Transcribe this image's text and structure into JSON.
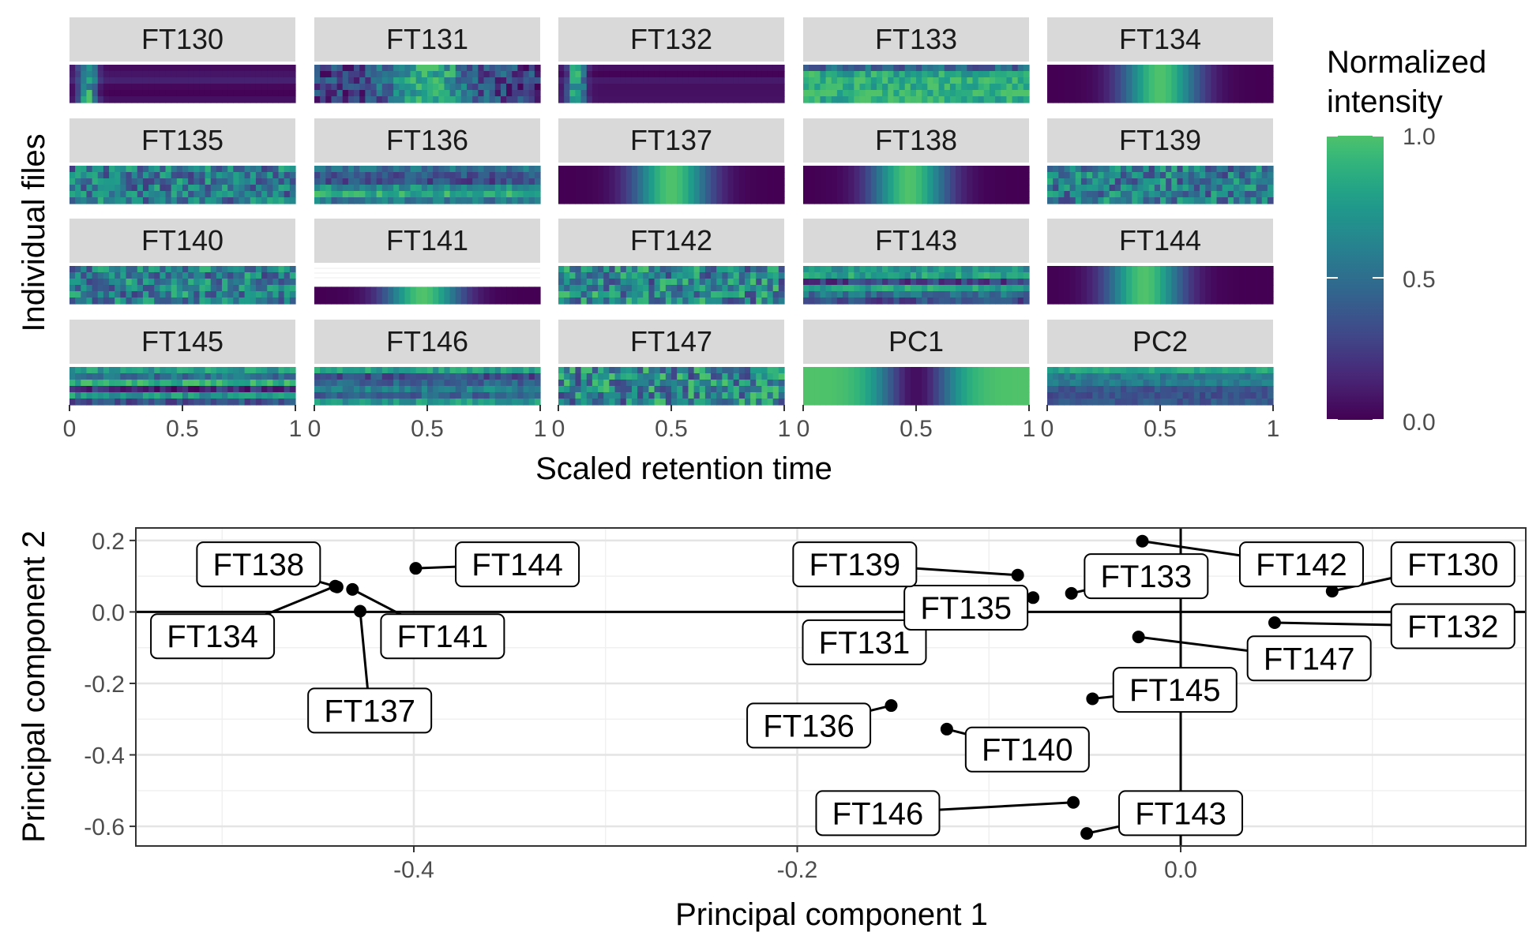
{
  "chart_data": [
    {
      "type": "heatmap",
      "ylabel": "Individual files",
      "xlabel": "Scaled retention time",
      "x_ticks": [
        "0",
        "0.5",
        "1"
      ],
      "xlim": [
        0,
        1
      ],
      "panels": [
        {
          "label": "FT130",
          "peak": 0.08,
          "pattern": "early",
          "noise": 0.2
        },
        {
          "label": "FT131",
          "peak": 0.5,
          "pattern": "noisy-peak",
          "noise": 0.55
        },
        {
          "label": "FT132",
          "peak": 0.08,
          "pattern": "early",
          "noise": 0.25
        },
        {
          "label": "FT133",
          "peak": 0.5,
          "pattern": "streaky",
          "noise": 0.7
        },
        {
          "label": "FT134",
          "peak": 0.5,
          "pattern": "smooth",
          "noise": 0.05
        },
        {
          "label": "FT135",
          "peak": 0.5,
          "pattern": "flat",
          "noise": 0.65
        },
        {
          "label": "FT136",
          "peak": 0.5,
          "pattern": "streaky",
          "noise": 0.6
        },
        {
          "label": "FT137",
          "peak": 0.5,
          "pattern": "smooth",
          "noise": 0.08
        },
        {
          "label": "FT138",
          "peak": 0.47,
          "pattern": "smooth",
          "noise": 0.05
        },
        {
          "label": "FT139",
          "peak": 0.5,
          "pattern": "flat",
          "noise": 0.65
        },
        {
          "label": "FT140",
          "peak": 0.5,
          "pattern": "flat",
          "noise": 0.7
        },
        {
          "label": "FT141",
          "peak": 0.48,
          "pattern": "single-row",
          "noise": 0.03
        },
        {
          "label": "FT142",
          "peak": 0.5,
          "pattern": "flat",
          "noise": 0.75
        },
        {
          "label": "FT143",
          "peak": 0.5,
          "pattern": "streaky",
          "noise": 0.6
        },
        {
          "label": "FT144",
          "peak": 0.43,
          "pattern": "smooth",
          "noise": 0.05
        },
        {
          "label": "FT145",
          "peak": 0.5,
          "pattern": "streaky",
          "noise": 0.6
        },
        {
          "label": "FT146",
          "peak": 0.5,
          "pattern": "streaky",
          "noise": 0.55
        },
        {
          "label": "FT147",
          "peak": 0.5,
          "pattern": "flat",
          "noise": 0.8
        },
        {
          "label": "PC1",
          "peak": 0.5,
          "pattern": "inverted",
          "noise": 0.05
        },
        {
          "label": "PC2",
          "peak": 0.5,
          "pattern": "streaky",
          "noise": 0.35
        }
      ],
      "legend": {
        "title_line1": "Normalized",
        "title_line2": "intensity",
        "ticks": [
          "1.0",
          "0.5",
          "0.0"
        ],
        "range": [
          0,
          1
        ],
        "colormap": "viridis",
        "position": "right"
      }
    },
    {
      "type": "scatter",
      "xlabel": "Principal component 1",
      "ylabel": "Principal component 2",
      "xlim": [
        -0.545,
        0.18
      ],
      "ylim": [
        -0.655,
        0.235
      ],
      "x_ticks": [
        -0.4,
        -0.2,
        0.0
      ],
      "y_ticks": [
        0.2,
        0.0,
        -0.2,
        -0.4,
        -0.6
      ],
      "x_tick_labels": [
        "-0.4",
        "-0.2",
        "0.0"
      ],
      "y_tick_labels": [
        "0.2",
        "0.0",
        "-0.2",
        "-0.4",
        "-0.6"
      ],
      "reference_lines": {
        "x": 0.0,
        "y": 0.0
      },
      "grid": true,
      "points": [
        {
          "label": "FT130",
          "x": 0.079,
          "y": 0.058,
          "lx": 0.142,
          "ly": 0.133
        },
        {
          "label": "FT131",
          "x": -0.119,
          "y": 0.0,
          "lx": -0.165,
          "ly": -0.085
        },
        {
          "label": "FT132",
          "x": 0.049,
          "y": -0.03,
          "lx": 0.142,
          "ly": -0.04
        },
        {
          "label": "FT133",
          "x": -0.057,
          "y": 0.052,
          "lx": -0.018,
          "ly": 0.1
        },
        {
          "label": "FT134",
          "x": -0.441,
          "y": 0.072,
          "lx": -0.505,
          "ly": -0.068
        },
        {
          "label": "FT135",
          "x": -0.077,
          "y": 0.04,
          "lx": -0.112,
          "ly": 0.012
        },
        {
          "label": "FT136",
          "x": -0.151,
          "y": -0.262,
          "lx": -0.194,
          "ly": -0.318
        },
        {
          "label": "FT137",
          "x": -0.428,
          "y": 0.002,
          "lx": -0.423,
          "ly": -0.276
        },
        {
          "label": "FT138",
          "x": -0.44,
          "y": 0.07,
          "lx": -0.481,
          "ly": 0.133
        },
        {
          "label": "FT139",
          "x": -0.085,
          "y": 0.103,
          "lx": -0.17,
          "ly": 0.133
        },
        {
          "label": "FT140",
          "x": -0.122,
          "y": -0.328,
          "lx": -0.08,
          "ly": -0.385
        },
        {
          "label": "FT141",
          "x": -0.432,
          "y": 0.063,
          "lx": -0.385,
          "ly": -0.068
        },
        {
          "label": "FT142",
          "x": -0.02,
          "y": 0.198,
          "lx": 0.063,
          "ly": 0.133
        },
        {
          "label": "FT143",
          "x": -0.049,
          "y": -0.62,
          "lx": 0.0,
          "ly": -0.563
        },
        {
          "label": "FT144",
          "x": -0.399,
          "y": 0.122,
          "lx": -0.346,
          "ly": 0.133
        },
        {
          "label": "FT145",
          "x": -0.046,
          "y": -0.243,
          "lx": -0.003,
          "ly": -0.218
        },
        {
          "label": "FT146",
          "x": -0.056,
          "y": -0.533,
          "lx": -0.158,
          "ly": -0.563
        },
        {
          "label": "FT147",
          "x": -0.022,
          "y": -0.07,
          "lx": 0.067,
          "ly": -0.13
        }
      ]
    }
  ]
}
